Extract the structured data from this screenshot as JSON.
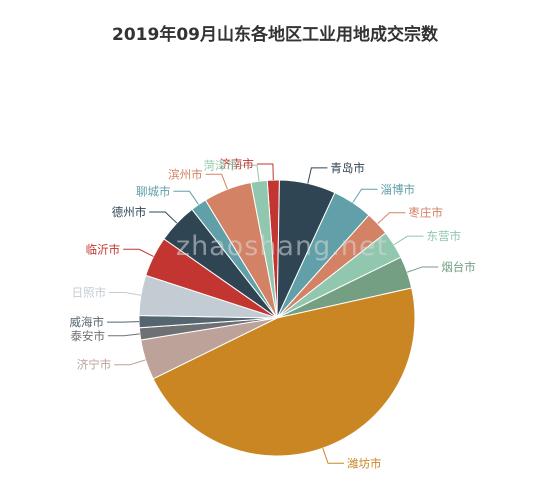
{
  "chart_data": {
    "type": "pie",
    "title": "2019年09月山东各地区工业用地成交宗数",
    "watermark": "zhaoshang.net",
    "slices": [
      {
        "label": "济南市",
        "value": 1.5,
        "color": "#c23531"
      },
      {
        "label": "青岛市",
        "value": 7,
        "color": "#2f4554"
      },
      {
        "label": "淄博市",
        "value": 5,
        "color": "#61a0a8"
      },
      {
        "label": "枣庄市",
        "value": 3,
        "color": "#d48265"
      },
      {
        "label": "东营市",
        "value": 3.5,
        "color": "#91c7ae"
      },
      {
        "label": "烟台市",
        "value": 4,
        "color": "#749f83"
      },
      {
        "label": "潍坊市",
        "value": 49,
        "color": "#ca8622"
      },
      {
        "label": "济宁市",
        "value": 5,
        "color": "#bda29a"
      },
      {
        "label": "泰安市",
        "value": 1.5,
        "color": "#6e7074"
      },
      {
        "label": "威海市",
        "value": 1.5,
        "color": "#546570"
      },
      {
        "label": "日照市",
        "value": 5,
        "color": "#c4ccd3"
      },
      {
        "label": "临沂市",
        "value": 5,
        "color": "#c23531"
      },
      {
        "label": "德州市",
        "value": 5,
        "color": "#2f4554"
      },
      {
        "label": "聊城市",
        "value": 2,
        "color": "#61a0a8"
      },
      {
        "label": "滨州市",
        "value": 6,
        "color": "#d48265"
      },
      {
        "label": "菏泽市",
        "value": 2,
        "color": "#91c7ae"
      }
    ]
  }
}
